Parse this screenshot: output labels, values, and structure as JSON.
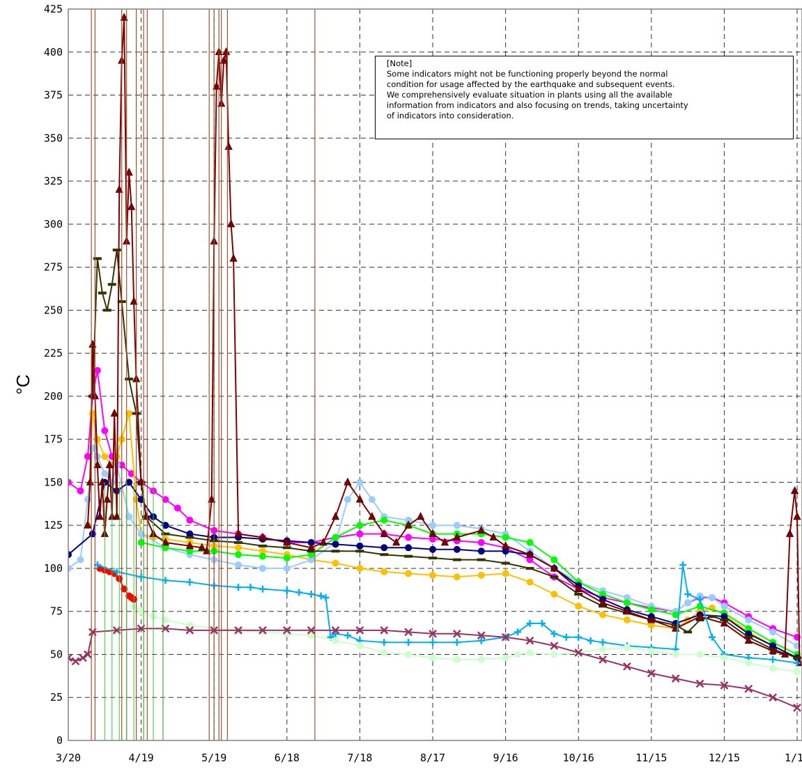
{
  "chart_data": {
    "type": "line",
    "title": "",
    "xlabel": "",
    "ylabel": "°C",
    "ylim": [
      0,
      425
    ],
    "y_ticks": [
      0,
      25,
      50,
      75,
      100,
      125,
      150,
      175,
      200,
      225,
      250,
      275,
      300,
      325,
      350,
      375,
      400,
      425
    ],
    "x_tick_labels": [
      "3/20",
      "4/19",
      "5/19",
      "6/18",
      "7/18",
      "8/17",
      "9/16",
      "10/16",
      "11/15",
      "12/15",
      "1/14"
    ],
    "x_tick_days": [
      0,
      30,
      60,
      90,
      120,
      150,
      180,
      210,
      240,
      270,
      300
    ],
    "grid": true,
    "legend": "none",
    "note": {
      "title": "[Note]",
      "lines": [
        "Some indicators might not be functioning properly beyond the normal",
        "condition for usage affected by the earthquake and subsequent events.",
        "We comprehensively evaluate situation in plants using all the available",
        "information from indicators and also focusing on trends, taking uncertainty",
        "of indicators into consideration."
      ]
    },
    "series": [
      {
        "color": "#ff00ff",
        "marker": "circle",
        "x": [
          0,
          5,
          8,
          10,
          12,
          15,
          18,
          22,
          26,
          30,
          35,
          40,
          45,
          50,
          60,
          70,
          80,
          90,
          100,
          110,
          120,
          130,
          140,
          150,
          160,
          170,
          180,
          190,
          200,
          210,
          220,
          230,
          240,
          250,
          255,
          260,
          265,
          270,
          280,
          290,
          300
        ],
        "y": [
          150,
          145,
          165,
          200,
          215,
          180,
          165,
          160,
          155,
          150,
          145,
          140,
          135,
          128,
          122,
          120,
          118,
          115,
          115,
          118,
          120,
          120,
          118,
          117,
          116,
          115,
          112,
          105,
          95,
          88,
          83,
          80,
          77,
          75,
          80,
          83,
          83,
          80,
          72,
          65,
          60
        ]
      },
      {
        "color": "#ffc000",
        "marker": "circle",
        "x": [
          8,
          10,
          12,
          15,
          18,
          20,
          22,
          25,
          28,
          30,
          35,
          40,
          50,
          60,
          70,
          80,
          90,
          100,
          110,
          120,
          130,
          140,
          150,
          160,
          170,
          180,
          190,
          200,
          210,
          220,
          230,
          240,
          250,
          255,
          260,
          265,
          270,
          280,
          290,
          300
        ],
        "y": [
          125,
          190,
          175,
          165,
          160,
          165,
          175,
          190,
          140,
          120,
          118,
          117,
          115,
          113,
          112,
          110,
          108,
          105,
          103,
          100,
          98,
          97,
          96,
          95,
          96,
          97,
          92,
          85,
          78,
          73,
          70,
          67,
          65,
          70,
          75,
          77,
          73,
          63,
          55,
          48
        ]
      },
      {
        "color": "#99ccff",
        "marker": "circle",
        "x": [
          0,
          5,
          8,
          10,
          12,
          15,
          18,
          20,
          25,
          30,
          40,
          50,
          60,
          70,
          80,
          90,
          100,
          110,
          115,
          120,
          125,
          130,
          140,
          150,
          160,
          170,
          180,
          190,
          200,
          210,
          220,
          230,
          240,
          250,
          255,
          260,
          265,
          270,
          280,
          290,
          300
        ],
        "y": [
          100,
          105,
          140,
          170,
          165,
          155,
          150,
          160,
          130,
          120,
          112,
          108,
          105,
          102,
          100,
          100,
          105,
          115,
          140,
          150,
          140,
          130,
          128,
          125,
          125,
          123,
          120,
          110,
          100,
          92,
          87,
          83,
          78,
          75,
          80,
          84,
          83,
          78,
          70,
          63,
          55
        ]
      },
      {
        "color": "#00ff00",
        "marker": "circle",
        "x": [
          30,
          40,
          50,
          60,
          70,
          80,
          90,
          100,
          110,
          120,
          130,
          140,
          150,
          160,
          170,
          180,
          190,
          200,
          210,
          220,
          230,
          240,
          250,
          260,
          270,
          280,
          290,
          300
        ],
        "y": [
          115,
          112,
          110,
          110,
          108,
          107,
          106,
          108,
          118,
          125,
          128,
          125,
          120,
          120,
          120,
          118,
          115,
          105,
          92,
          85,
          80,
          76,
          73,
          78,
          74,
          65,
          57,
          50
        ]
      },
      {
        "color": "#000080",
        "marker": "circle",
        "x": [
          0,
          10,
          15,
          20,
          25,
          30,
          35,
          40,
          50,
          60,
          70,
          80,
          90,
          100,
          110,
          120,
          130,
          140,
          150,
          160,
          170,
          180,
          190,
          200,
          210,
          220,
          230,
          240,
          250,
          260,
          270,
          280,
          290,
          300
        ],
        "y": [
          108,
          120,
          150,
          145,
          150,
          140,
          130,
          125,
          120,
          118,
          118,
          117,
          116,
          115,
          114,
          113,
          112,
          112,
          111,
          111,
          110,
          110,
          108,
          100,
          90,
          82,
          76,
          72,
          68,
          73,
          72,
          62,
          55,
          48
        ]
      },
      {
        "color": "#333300",
        "marker": "dash",
        "x": [
          10,
          12,
          14,
          16,
          18,
          20,
          22,
          25,
          28,
          30,
          32,
          40,
          50,
          60,
          70,
          80,
          90,
          100,
          110,
          120,
          130,
          140,
          150,
          160,
          170,
          180,
          190,
          200,
          210,
          220,
          230,
          240,
          250,
          255,
          260,
          265,
          270,
          280,
          290,
          300
        ],
        "y": [
          200,
          280,
          260,
          250,
          265,
          285,
          255,
          210,
          190,
          150,
          130,
          120,
          118,
          116,
          115,
          113,
          112,
          110,
          110,
          110,
          108,
          107,
          106,
          105,
          105,
          103,
          100,
          95,
          85,
          78,
          74,
          70,
          67,
          63,
          70,
          72,
          70,
          60,
          53,
          48
        ]
      },
      {
        "color": "#7f0000",
        "marker": "triangle",
        "x": [
          8,
          9,
          10,
          11,
          12,
          13,
          14,
          15,
          16,
          17,
          18,
          19,
          20,
          21,
          22,
          23,
          24,
          25,
          26,
          27,
          28,
          30,
          32,
          35,
          40,
          50,
          55,
          57,
          59,
          60,
          61,
          62,
          63,
          64,
          65,
          66,
          67,
          68,
          70,
          80,
          90,
          100,
          105,
          110,
          115,
          120,
          125,
          130,
          135,
          140,
          145,
          150,
          155,
          160,
          170,
          175,
          180,
          190,
          200,
          210,
          220,
          230,
          240,
          250,
          260,
          270,
          280,
          290,
          295,
          297,
          299,
          300,
          301
        ],
        "y": [
          125,
          150,
          230,
          200,
          160,
          130,
          150,
          120,
          140,
          160,
          130,
          190,
          130,
          320,
          395,
          420,
          290,
          330,
          310,
          255,
          210,
          150,
          130,
          120,
          115,
          113,
          112,
          110,
          140,
          290,
          380,
          400,
          370,
          395,
          400,
          345,
          300,
          280,
          120,
          118,
          115,
          112,
          115,
          130,
          150,
          140,
          130,
          120,
          115,
          125,
          130,
          120,
          115,
          118,
          122,
          118,
          113,
          108,
          100,
          88,
          80,
          75,
          70,
          65,
          72,
          68,
          58,
          52,
          50,
          120,
          145,
          130,
          45
        ]
      },
      {
        "color": "#ff0000",
        "marker": "circle",
        "x": [
          13,
          15,
          17,
          19,
          21,
          23,
          25,
          26,
          27
        ],
        "y": [
          100,
          99,
          98,
          97,
          94,
          88,
          84,
          83,
          82
        ]
      },
      {
        "color": "#00b0f0",
        "marker": "plus",
        "x": [
          12,
          20,
          30,
          40,
          50,
          60,
          70,
          75,
          80,
          90,
          95,
          100,
          104,
          106,
          108,
          110,
          115,
          120,
          130,
          140,
          150,
          160,
          170,
          180,
          185,
          190,
          195,
          200,
          205,
          210,
          215,
          220,
          230,
          240,
          250,
          253,
          255,
          260,
          265,
          270,
          280,
          290,
          300
        ],
        "y": [
          102,
          98,
          95,
          93,
          92,
          90,
          89,
          89,
          88,
          87,
          86,
          85,
          84,
          83,
          60,
          62,
          61,
          58,
          57,
          57,
          57,
          57,
          58,
          60,
          63,
          68,
          68,
          62,
          60,
          60,
          58,
          57,
          55,
          54,
          53,
          102,
          85,
          82,
          60,
          50,
          48,
          47,
          45
        ]
      },
      {
        "color": "#ccffcc",
        "marker": "circle",
        "x": [
          27,
          30,
          35,
          40,
          50,
          60,
          70,
          80,
          90,
          100,
          110,
          120,
          130,
          140,
          150,
          160,
          170,
          180,
          185,
          190,
          200,
          210,
          220,
          230,
          240,
          250,
          260,
          270,
          280,
          290,
          300
        ],
        "y": [
          78,
          75,
          72,
          70,
          67,
          65,
          64,
          63,
          62,
          61,
          58,
          55,
          51,
          50,
          48,
          47,
          47,
          48,
          50,
          51,
          50,
          51,
          53,
          54,
          52,
          50,
          50,
          48,
          45,
          42,
          40
        ]
      },
      {
        "color": "#993366",
        "marker": "x",
        "x": [
          0,
          3,
          6,
          8,
          10,
          20,
          30,
          40,
          50,
          60,
          70,
          80,
          90,
          100,
          110,
          120,
          130,
          140,
          150,
          160,
          170,
          180,
          190,
          200,
          210,
          220,
          230,
          240,
          250,
          260,
          270,
          280,
          290,
          300
        ],
        "y": [
          48,
          46,
          48,
          50,
          63,
          64,
          65,
          65,
          64,
          64,
          64,
          64,
          64,
          64,
          64,
          64,
          64,
          63,
          62,
          62,
          61,
          60,
          58,
          55,
          51,
          47,
          43,
          39,
          36,
          33,
          32,
          30,
          25,
          19
        ]
      }
    ]
  }
}
